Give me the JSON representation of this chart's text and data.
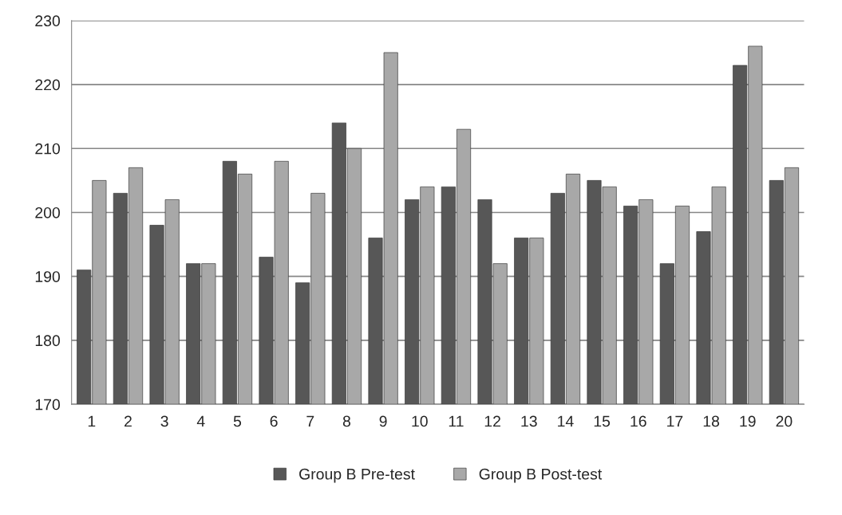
{
  "chart_data": {
    "type": "bar",
    "categories": [
      "1",
      "2",
      "3",
      "4",
      "5",
      "6",
      "7",
      "8",
      "9",
      "10",
      "11",
      "12",
      "13",
      "14",
      "15",
      "16",
      "17",
      "18",
      "19",
      "20"
    ],
    "series": [
      {
        "name": "Group B Pre-test",
        "color": "#575757",
        "values": [
          191,
          203,
          198,
          192,
          208,
          193,
          189,
          214,
          196,
          202,
          204,
          202,
          196,
          203,
          205,
          201,
          192,
          197,
          223,
          205
        ]
      },
      {
        "name": "Group B Post-test",
        "color": "#a8a8a8",
        "values": [
          205,
          207,
          202,
          192,
          206,
          208,
          203,
          210,
          225,
          204,
          213,
          192,
          196,
          206,
          204,
          202,
          201,
          204,
          226,
          207
        ]
      }
    ],
    "ylim": [
      170,
      230
    ],
    "yticks": [
      170,
      180,
      190,
      200,
      210,
      220,
      230
    ],
    "grid": "y",
    "legend": "bottom"
  }
}
